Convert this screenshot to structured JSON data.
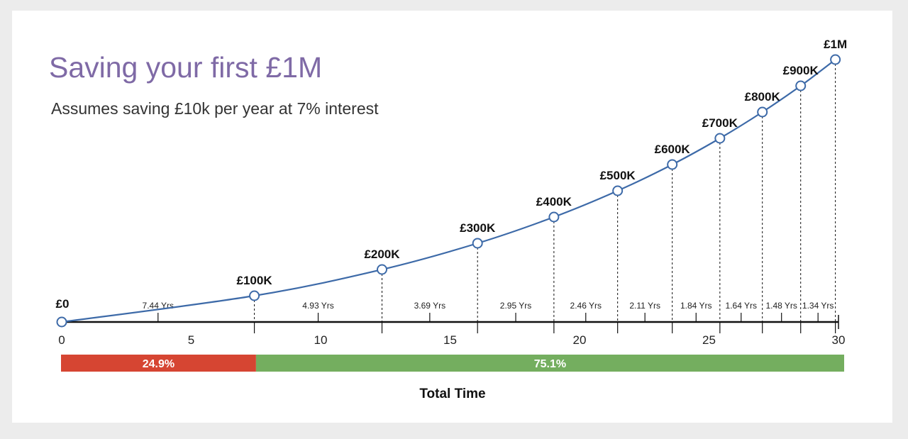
{
  "title": "Saving your first £1M",
  "subtitle": "Assumes saving £10k per year at 7% interest",
  "chart_data": {
    "type": "line",
    "title": "Saving your first £1M",
    "subtitle": "Assumes saving £10k per year at 7% interest",
    "xlabel": "Total Time",
    "xlim": [
      0,
      30
    ],
    "ylim": [
      0,
      1000000
    ],
    "x_ticks": [
      "0",
      "5",
      "10",
      "15",
      "20",
      "25",
      "30"
    ],
    "points": [
      {
        "year": 0,
        "value": 0,
        "label": "£0"
      },
      {
        "year": 7.44,
        "value": 100000,
        "label": "£100K"
      },
      {
        "year": 12.37,
        "value": 200000,
        "label": "£200K"
      },
      {
        "year": 16.06,
        "value": 300000,
        "label": "£300K"
      },
      {
        "year": 19.01,
        "value": 400000,
        "label": "£400K"
      },
      {
        "year": 21.47,
        "value": 500000,
        "label": "£500K"
      },
      {
        "year": 23.58,
        "value": 600000,
        "label": "£600K"
      },
      {
        "year": 25.42,
        "value": 700000,
        "label": "£700K"
      },
      {
        "year": 27.06,
        "value": 800000,
        "label": "£800K"
      },
      {
        "year": 28.54,
        "value": 900000,
        "label": "£900K"
      },
      {
        "year": 29.88,
        "value": 1000000,
        "label": "£1M"
      }
    ],
    "segment_labels": [
      "7.44 Yrs",
      "4.93  Yrs",
      "3.69 Yrs",
      "2.95 Yrs",
      "2.46 Yrs",
      "2.11 Yrs",
      "1.84 Yrs",
      "1.64 Yrs",
      "1.48 Yrs",
      "1.34 Yrs"
    ],
    "time_split": [
      {
        "label": "24.9%",
        "value": 24.9,
        "color": "#d64532"
      },
      {
        "label": "75.1%",
        "value": 75.1,
        "color": "#74ae5f"
      }
    ],
    "line_color": "#3d6aa8"
  }
}
